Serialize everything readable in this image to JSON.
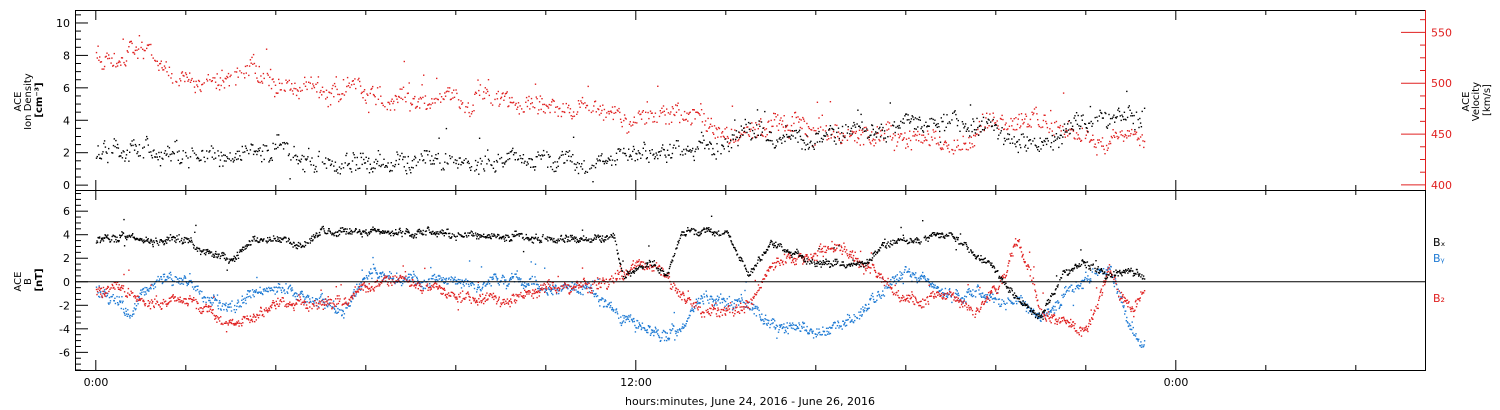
{
  "chart_data": [
    {
      "type": "scatter",
      "xlabel": "hours:minutes, June 24, 2016 - June 26, 2016",
      "x_ticks": [
        "0:00",
        "12:00",
        "0:00"
      ],
      "left_axis": {
        "label_lines": [
          "ACE",
          "Ion Density",
          "[cm⁻³]"
        ],
        "ylim": [
          -0.3,
          10.8
        ],
        "ticks": [
          0,
          2,
          4,
          6,
          8,
          10
        ],
        "color": "#000000"
      },
      "right_axis": {
        "label_lines": [
          "ACE",
          "Velocity",
          "[km/s]"
        ],
        "ylim": [
          395,
          572
        ],
        "ticks": [
          400,
          450,
          500,
          550
        ],
        "color": "#e02020"
      },
      "series": [
        {
          "axis": "left",
          "color": "#000000",
          "knots_x": [
            0,
            0.3,
            0.6,
            1.0,
            1.5,
            2.0,
            2.5,
            3.0,
            3.5,
            4.0,
            5.0,
            6.0,
            7.0,
            8.0,
            9.0,
            10.0,
            11.0,
            11.5,
            12.0,
            12.5,
            13.0,
            13.5,
            14.0,
            14.5,
            15.0,
            16.0,
            17.0,
            18.0,
            19.0,
            20.0,
            20.5,
            21.0,
            21.5,
            22.0,
            22.5,
            23.0,
            23.3
          ],
          "knots_y": [
            1.9,
            2.1,
            2.4,
            2.0,
            1.7,
            2.2,
            1.8,
            1.8,
            2.3,
            2.2,
            1.6,
            1.5,
            1.4,
            1.5,
            1.5,
            1.5,
            1.4,
            1.7,
            1.8,
            2.2,
            2.5,
            2.4,
            2.4,
            3.3,
            2.8,
            3.1,
            3.3,
            3.8,
            4.3,
            3.4,
            3.0,
            2.5,
            3.3,
            3.8,
            4.2,
            3.8,
            4.3
          ]
        },
        {
          "axis": "right",
          "color": "#e02020",
          "knots_x": [
            0,
            0.5,
            1.0,
            1.5,
            2.0,
            2.5,
            3.0,
            3.5,
            4.0,
            5.0,
            6.0,
            7.0,
            8.0,
            9.0,
            10.0,
            10.5,
            11.0,
            11.5,
            12.0,
            12.5,
            13.0,
            13.5,
            14.0,
            15.0,
            16.0,
            17.0,
            17.5,
            18.0,
            19.0,
            19.5,
            20.0,
            21.0,
            21.5,
            22.0,
            22.5,
            23.0,
            23.3
          ],
          "knots_y": [
            535,
            525,
            532,
            515,
            510,
            506,
            505,
            510,
            500,
            495,
            490,
            487,
            484,
            480,
            478,
            476,
            470,
            468,
            466,
            466,
            470,
            462,
            458,
            458,
            455,
            452,
            449,
            445,
            443,
            448,
            468,
            462,
            455,
            446,
            440,
            452,
            445
          ]
        }
      ]
    },
    {
      "type": "scatter",
      "left_axis": {
        "label_lines": [
          "ACE",
          "B",
          "[nT]"
        ],
        "ylim": [
          -7.5,
          7.8
        ],
        "ticks": [
          -6,
          -4,
          -2,
          0,
          2,
          4,
          6
        ],
        "color": "#000000"
      },
      "zero_line": 0,
      "series": [
        {
          "name": "Bx",
          "color": "#000000",
          "knots_x": [
            0,
            0.8,
            1.0,
            2.0,
            2.5,
            3.0,
            3.5,
            4.0,
            4.5,
            5.0,
            6.0,
            7.0,
            8.0,
            9.0,
            10.0,
            11.0,
            11.5,
            11.7,
            12.3,
            12.7,
            13.0,
            13.5,
            14.0,
            14.5,
            15.0,
            16.0,
            17.0,
            17.5,
            18.0,
            19.0,
            20.0,
            20.5,
            21.0,
            21.5,
            22.0,
            22.5,
            23.0,
            23.3
          ],
          "knots_y": [
            3.6,
            4.1,
            3.5,
            3.6,
            2.5,
            1.8,
            3.6,
            3.9,
            3.0,
            4.3,
            4.3,
            4.2,
            4.1,
            3.9,
            3.8,
            3.7,
            3.8,
            0.5,
            1.8,
            0.5,
            4.2,
            4.3,
            4.3,
            0.5,
            3.5,
            1.5,
            1.5,
            3.2,
            3.5,
            4.2,
            1.0,
            -1.5,
            -3.0,
            0.8,
            1.5,
            0.5,
            1.0,
            0.5
          ]
        },
        {
          "name": "By",
          "color": "#1f7bd4",
          "knots_x": [
            0,
            0.4,
            0.8,
            1.0,
            1.5,
            2.0,
            2.5,
            3.0,
            3.5,
            4.0,
            5.0,
            5.5,
            6.0,
            6.5,
            7.0,
            8.0,
            8.5,
            9.0,
            10.0,
            11.0,
            11.5,
            12.0,
            12.5,
            13.0,
            13.5,
            14.0,
            14.5,
            15.0,
            16.0,
            16.5,
            17.0,
            18.0,
            19.0,
            19.5,
            20.0,
            20.5,
            21.0,
            22.0,
            22.5,
            23.0,
            23.3
          ],
          "knots_y": [
            -0.8,
            -1.5,
            -2.8,
            -1.0,
            0.2,
            0.3,
            -1.5,
            -2.3,
            -0.8,
            -0.5,
            -1.5,
            -2.2,
            0.5,
            0.3,
            0.3,
            0.2,
            -0.3,
            0.5,
            -0.5,
            -0.8,
            -2.5,
            -3.5,
            -4.5,
            -3.8,
            -1.0,
            -2.0,
            -1.5,
            -3.8,
            -4.0,
            -3.8,
            -2.5,
            1.0,
            -1.2,
            -1.0,
            -1.5,
            -1.5,
            -3.0,
            0.5,
            1.5,
            -4.0,
            -5.5
          ]
        },
        {
          "name": "Bz",
          "color": "#e02020",
          "knots_x": [
            0,
            0.5,
            1.0,
            1.5,
            2.0,
            2.5,
            3.0,
            3.5,
            4.0,
            5.0,
            5.5,
            6.0,
            6.5,
            7.0,
            8.0,
            9.0,
            10.0,
            11.0,
            11.5,
            12.0,
            12.5,
            13.0,
            13.5,
            14.0,
            14.5,
            15.0,
            16.0,
            16.5,
            17.0,
            18.0,
            19.0,
            19.5,
            20.0,
            20.5,
            21.0,
            22.0,
            22.5,
            23.0,
            23.3
          ],
          "knots_y": [
            -0.8,
            -0.5,
            -1.5,
            -1.8,
            -1.5,
            -2.5,
            -3.5,
            -3.2,
            -1.5,
            -2.0,
            -1.8,
            -0.2,
            0.2,
            0.0,
            -1.0,
            -1.5,
            -0.5,
            -0.5,
            0.2,
            1.5,
            1.0,
            -1.0,
            -2.5,
            -2.5,
            -2.0,
            1.5,
            2.5,
            3.5,
            1.5,
            -1.5,
            -1.0,
            -2.5,
            -0.5,
            3.5,
            -2.5,
            -4.5,
            1.0,
            -2.5,
            -0.5
          ]
        }
      ],
      "legend": [
        "Bₓ",
        "Bᵧ",
        "B₂"
      ]
    }
  ]
}
